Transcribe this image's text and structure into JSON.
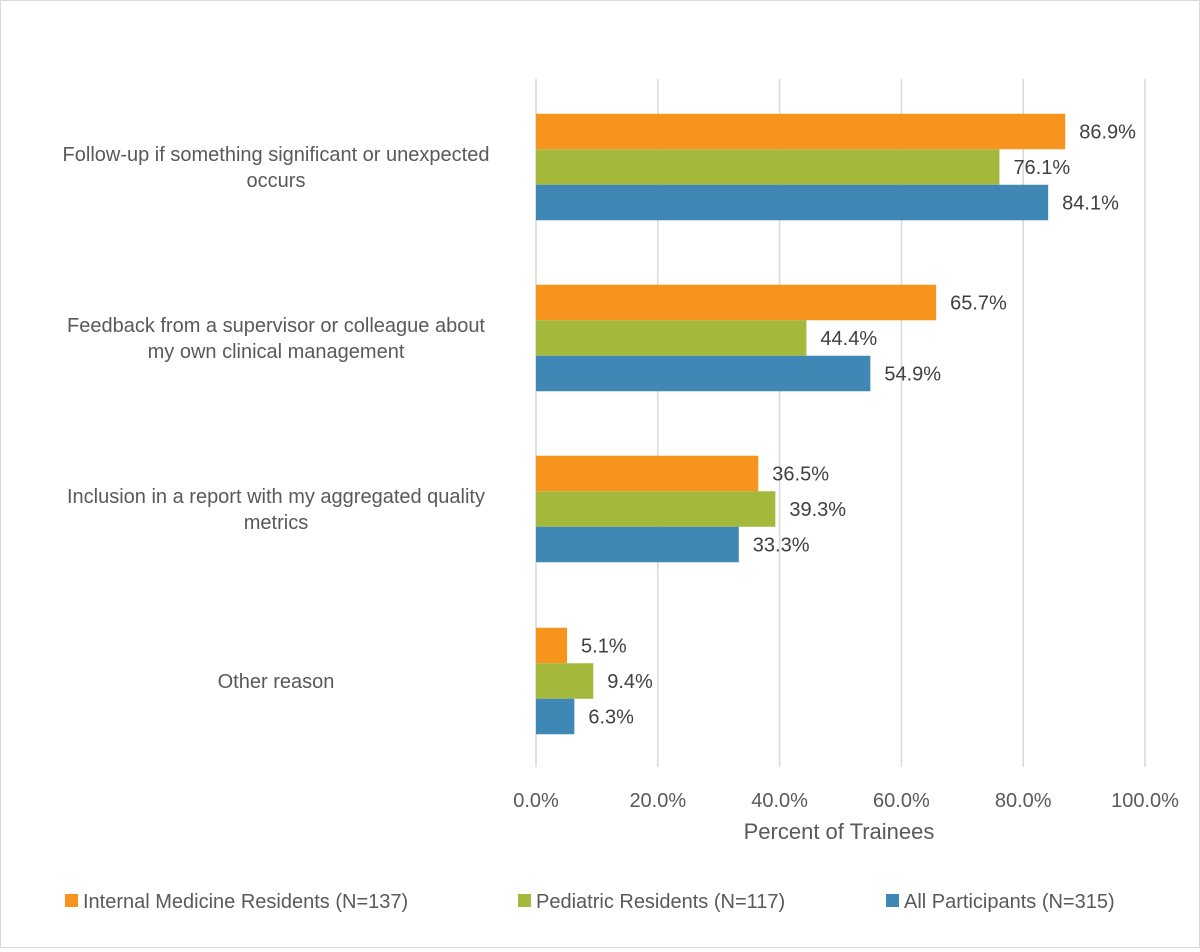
{
  "chart_data": {
    "type": "bar",
    "orientation": "horizontal",
    "categories": [
      [
        "Follow-up if something significant or unexpected",
        "occurs"
      ],
      [
        "Feedback from a supervisor or colleague about",
        "my own clinical management"
      ],
      [
        "Inclusion in a report with my aggregated quality",
        "metrics"
      ],
      [
        "Other reason"
      ]
    ],
    "series": [
      {
        "name": "Internal Medicine Residents (N=137)",
        "color": "#F7941D",
        "values": [
          86.9,
          65.7,
          36.5,
          5.1
        ],
        "labels": [
          "86.9%",
          "65.7%",
          "36.5%",
          "5.1%"
        ]
      },
      {
        "name": "Pediatric Residents (N=117)",
        "color": "#A4B83C",
        "values": [
          76.1,
          44.4,
          39.3,
          9.4
        ],
        "labels": [
          "76.1%",
          "44.4%",
          "39.3%",
          "9.4%"
        ]
      },
      {
        "name": "All Participants (N=315)",
        "color": "#3F88B5",
        "values": [
          84.1,
          54.9,
          33.3,
          6.3
        ],
        "labels": [
          "84.1%",
          "54.9%",
          "33.3%",
          "6.3%"
        ]
      }
    ],
    "xlabel": "Percent of Trainees",
    "xlim": [
      0,
      100
    ],
    "xticks": [
      "0.0%",
      "20.0%",
      "40.0%",
      "60.0%",
      "80.0%",
      "100.0%"
    ],
    "grid": true,
    "legend_position": "bottom"
  }
}
